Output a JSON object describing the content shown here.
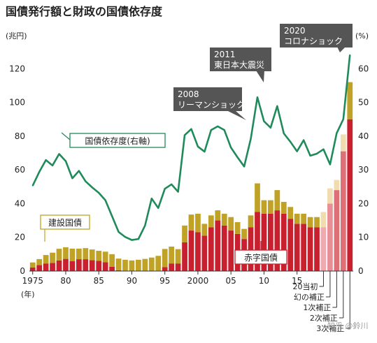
{
  "chart_data": {
    "type": "bar",
    "title": "国債発行額と財政の国債依存度",
    "left_unit": "(兆円)",
    "right_unit": "(%)",
    "year_unit": "(年)",
    "ylim_left": [
      0,
      140
    ],
    "ylim_right": [
      0,
      70
    ],
    "left_ticks": [
      "0",
      "20",
      "40",
      "60",
      "80",
      "100",
      "120"
    ],
    "right_ticks": [
      "0",
      "10",
      "20",
      "30",
      "40",
      "50",
      "60"
    ],
    "x": [
      1975,
      1976,
      1977,
      1978,
      1979,
      1980,
      1981,
      1982,
      1983,
      1984,
      1985,
      1986,
      1987,
      1988,
      1989,
      1990,
      1991,
      1992,
      1993,
      1994,
      1995,
      1996,
      1997,
      1998,
      1999,
      2000,
      2001,
      2002,
      2003,
      2004,
      2005,
      2006,
      2007,
      2008,
      2009,
      2010,
      2011,
      2012,
      2013,
      2014,
      2015,
      2016,
      2017,
      2018,
      2019,
      2020,
      2021,
      2022,
      2023
    ],
    "x_tick_labels": [
      {
        "year": 1975,
        "label": "1975"
      },
      {
        "year": 1980,
        "label": "80"
      },
      {
        "year": 1985,
        "label": "85"
      },
      {
        "year": 1990,
        "label": "90"
      },
      {
        "year": 1995,
        "label": "95"
      },
      {
        "year": 2000,
        "label": "2000"
      },
      {
        "year": 2005,
        "label": "05"
      },
      {
        "year": 2010,
        "label": "10"
      },
      {
        "year": 2015,
        "label": "15"
      }
    ],
    "series": [
      {
        "name": "赤字国債",
        "axis": "left",
        "values": [
          2.1,
          3.5,
          4.5,
          4.8,
          6.3,
          7.2,
          5.8,
          7.0,
          7.0,
          6.4,
          6.0,
          5.2,
          2.5,
          0.5,
          0,
          0,
          0,
          0,
          0,
          0,
          2.3,
          4.5,
          4.5,
          17.0,
          24.0,
          23.0,
          21.0,
          26.0,
          30.0,
          27.0,
          24.0,
          22.0,
          19.0,
          26.0,
          35.0,
          34.0,
          34.0,
          36.0,
          34.0,
          31.0,
          28.0,
          28.0,
          26.0,
          26.0,
          26.0,
          40.0,
          48.0,
          71.0,
          90.0
        ]
      },
      {
        "name": "建設国債",
        "axis": "left",
        "values": [
          3.0,
          3.6,
          5.0,
          6.1,
          6.9,
          6.9,
          7.5,
          6.3,
          6.6,
          6.4,
          6.0,
          6.3,
          7.5,
          6.9,
          6.7,
          6.3,
          6.7,
          7.2,
          8.0,
          9.0,
          10.8,
          10.0,
          8.5,
          10.0,
          9.5,
          11.0,
          7.0,
          7.0,
          6.0,
          7.0,
          8.0,
          7.0,
          6.0,
          7.0,
          17.0,
          8.0,
          8.0,
          12.0,
          7.0,
          7.0,
          6.0,
          6.0,
          6.0,
          6.0,
          9.0,
          9.0,
          6.0,
          10.0,
          22.0
        ]
      },
      {
        "name": "国債依存度(右軸)",
        "axis": "right",
        "values": [
          25.3,
          29.4,
          32.9,
          31.3,
          34.7,
          32.6,
          27.5,
          29.7,
          26.6,
          24.8,
          23.2,
          21.0,
          16.3,
          11.6,
          10.1,
          9.2,
          9.5,
          13.5,
          21.5,
          18.7,
          24.4,
          25.7,
          23.5,
          40.3,
          42.1,
          36.9,
          35.4,
          41.8,
          42.9,
          41.8,
          36.6,
          33.7,
          31.0,
          39.2,
          51.5,
          44.4,
          42.5,
          48.9,
          40.8,
          38.3,
          35.5,
          38.8,
          34.2,
          34.8,
          36.1,
          31.6,
          40.9,
          45.0,
          64.1
        ]
      }
    ],
    "annotations": [
      {
        "year": 2008,
        "lines": [
          "2008",
          "リーマンショック"
        ]
      },
      {
        "year": 2011,
        "lines": [
          "2011",
          "東日本大震災"
        ]
      },
      {
        "year": 2020,
        "lines": [
          "2020",
          "コロナショック"
        ]
      }
    ],
    "special_bars": [
      {
        "year": 2019,
        "label": "20当初"
      },
      {
        "year": 2020,
        "label": "幻の補正"
      },
      {
        "year": 2021,
        "label": "1次補正"
      },
      {
        "year": 2022,
        "label": "2次補正"
      },
      {
        "year": 2023,
        "label": "3次補正"
      }
    ],
    "watermark": "知乎 @鈴川",
    "colors": {
      "deficit": "#c8202f",
      "construction": "#c0a326",
      "dependency": "#1f8a5a",
      "deficit_light_1": "#f0a9ae",
      "deficit_light_2": "#e88f95",
      "deficit_light_3": "#de6f77",
      "construction_light": "#f0dcae",
      "bubble": "#555555",
      "axis": "#333333"
    },
    "legend_placement": "inline-labels",
    "grid": false
  }
}
